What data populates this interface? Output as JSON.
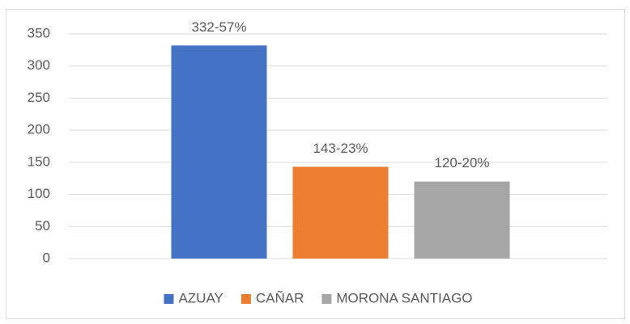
{
  "chart_data": {
    "type": "bar",
    "categories": [
      null
    ],
    "series": [
      {
        "name": "AZUAY",
        "color": "#4472c4",
        "values": [
          332
        ],
        "value_labels": [
          "332-57%"
        ]
      },
      {
        "name": "CAÑAR",
        "color": "#ed7d31",
        "values": [
          143
        ],
        "value_labels": [
          "143-23%"
        ]
      },
      {
        "name": "MORONA SANTIAGO",
        "color": "#a5a5a5",
        "values": [
          120
        ],
        "value_labels": [
          "120-20%"
        ]
      }
    ],
    "ylim": [
      0,
      350
    ],
    "yticks": [
      0,
      50,
      100,
      150,
      200,
      250,
      300,
      350
    ],
    "grid": true,
    "legend": "bottom"
  }
}
